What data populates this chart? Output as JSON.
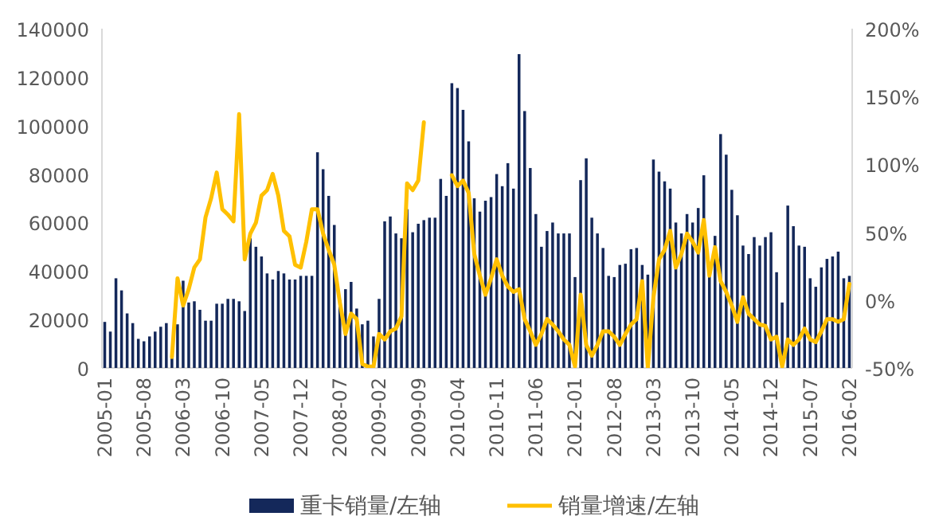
{
  "chart_data": {
    "type": "bar",
    "legend": "bottom",
    "categories": [
      "2005-01",
      null,
      null,
      null,
      null,
      null,
      null,
      "2005-08",
      null,
      null,
      null,
      null,
      null,
      null,
      "2006-03",
      null,
      null,
      null,
      null,
      null,
      null,
      "2006-10",
      null,
      null,
      null,
      null,
      null,
      null,
      "2007-05",
      null,
      null,
      null,
      null,
      null,
      null,
      "2007-12",
      null,
      null,
      null,
      null,
      null,
      null,
      "2008-07",
      null,
      null,
      null,
      null,
      null,
      null,
      "2009-02",
      null,
      null,
      null,
      null,
      null,
      null,
      "2009-09",
      null,
      null,
      null,
      null,
      null,
      null,
      "2010-04",
      null,
      null,
      null,
      null,
      null,
      null,
      "2010-11",
      null,
      null,
      null,
      null,
      null,
      null,
      "2011-06",
      null,
      null,
      null,
      null,
      null,
      null,
      "2012-01",
      null,
      null,
      null,
      null,
      null,
      null,
      "2012-08",
      null,
      null,
      null,
      null,
      null,
      null,
      "2013-03",
      null,
      null,
      null,
      null,
      null,
      null,
      "2013-10",
      null,
      null,
      null,
      null,
      null,
      null,
      "2014-05",
      null,
      null,
      null,
      null,
      null,
      null,
      "2014-12",
      null,
      null,
      null,
      null,
      null,
      null,
      "2015-07",
      null,
      null,
      null,
      null,
      null,
      null,
      "2016-02"
    ],
    "ylim": [
      0,
      140000
    ],
    "yticks": [
      0,
      20000,
      40000,
      60000,
      80000,
      100000,
      120000,
      140000
    ],
    "y2lim": [
      -50,
      200
    ],
    "y2ticks": [
      {
        "value": -50,
        "label": "-50%"
      },
      {
        "value": 0,
        "label": "0%"
      },
      {
        "value": 50,
        "label": "50%"
      },
      {
        "value": 100,
        "label": "100%"
      },
      {
        "value": 150,
        "label": "150%"
      },
      {
        "value": 200,
        "label": "200%"
      }
    ],
    "series": [
      {
        "name": "重卡销量/左轴",
        "color": "#14285a",
        "values": [
          19000,
          15000,
          37000,
          32000,
          22500,
          18500,
          12000,
          11000,
          13000,
          15000,
          17000,
          18500,
          4000,
          18000,
          36000,
          27000,
          27500,
          24000,
          19500,
          19500,
          26500,
          26500,
          28500,
          28500,
          27500,
          23500,
          53500,
          50000,
          46000,
          39000,
          36500,
          40000,
          39000,
          36500,
          36500,
          38000,
          38000,
          38000,
          89000,
          82000,
          71000,
          59000,
          28000,
          32500,
          35500,
          24500,
          18000,
          19500,
          13000,
          28500,
          60500,
          62500,
          55500,
          53500,
          65500,
          56000,
          59500,
          61000,
          62000,
          62000,
          78000,
          71000,
          117500,
          115500,
          106500,
          93500,
          70000,
          64500,
          69000,
          70500,
          80000,
          75000,
          84500,
          74000,
          129500,
          106000,
          82500,
          63500,
          50000,
          56500,
          60000,
          55500,
          55500,
          55500,
          37500,
          77500,
          86500,
          62000,
          55500,
          49500,
          38000,
          37500,
          42500,
          43000,
          49000,
          49500,
          42500,
          38500,
          86000,
          81000,
          77000,
          74000,
          60000,
          55500,
          63500,
          60000,
          66000,
          79500,
          38000,
          54500,
          96500,
          88000,
          73500,
          63000,
          50500,
          47000,
          54000,
          50500,
          54000,
          56000,
          39500,
          27000,
          67000,
          58500,
          50500,
          50000,
          37000,
          33500,
          41500,
          45000,
          46000,
          48000,
          37000,
          38000
        ]
      },
      {
        "name": "销量增速/左轴",
        "type": "line",
        "axis": "y2",
        "color": "#ffc000",
        "values": [
          null,
          null,
          null,
          null,
          null,
          null,
          null,
          null,
          null,
          null,
          null,
          null,
          -42,
          16,
          -4,
          8,
          24,
          30,
          61,
          75,
          94,
          67,
          63,
          58,
          137,
          30,
          49,
          57,
          77,
          81,
          93,
          77,
          51,
          47,
          26,
          24,
          43,
          67,
          67,
          49,
          37,
          26,
          -2,
          -25,
          -10,
          -14,
          -47,
          -49,
          -49,
          -25,
          -29,
          -23,
          -21,
          -12,
          86,
          81,
          88,
          131,
          null,
          null,
          null,
          null,
          92,
          84,
          88,
          79,
          34,
          18,
          4,
          16,
          30,
          18,
          10,
          6,
          8,
          -14,
          -23,
          -33,
          -25,
          -14,
          -18,
          -23,
          -29,
          -33,
          -49,
          4,
          -33,
          -41,
          -33,
          -23,
          -23,
          -27,
          -33,
          -25,
          -18,
          -14,
          14,
          -50,
          2,
          30,
          37,
          51,
          24,
          34,
          49,
          43,
          35,
          59,
          18,
          39,
          14,
          6,
          -4,
          -16,
          2,
          -10,
          -14,
          -18,
          -19,
          -29,
          -27,
          -49,
          -29,
          -33,
          -29,
          -21,
          -29,
          -31,
          -23,
          -14,
          -14,
          -16,
          -14,
          12
        ]
      }
    ]
  }
}
